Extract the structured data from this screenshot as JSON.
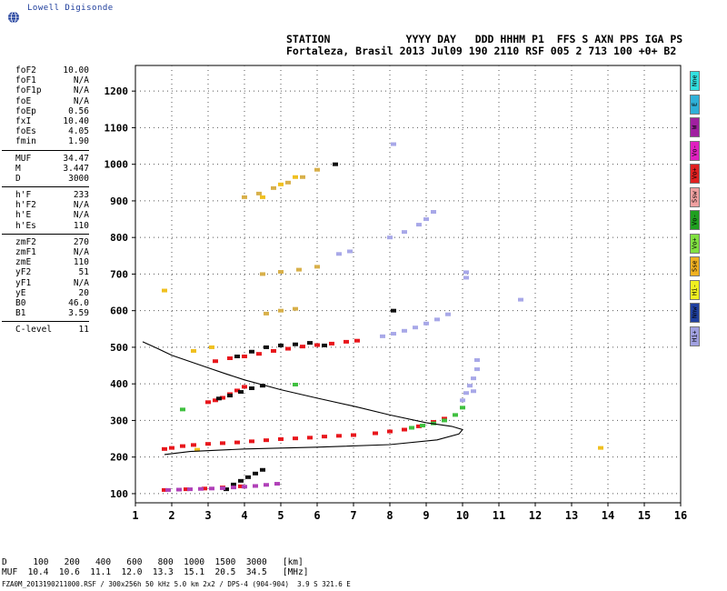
{
  "logo": {
    "text": "Lowell Digisonde"
  },
  "header": {
    "line1": "STATION            YYYY DAY   DDD HHHM P1  FFS S AXN PPS IGA PS",
    "line2": "Fortaleza, Brasil 2013 Jul09 190 2110 RSF 005 2 713 100 +0+ B2"
  },
  "params": {
    "group1": [
      {
        "label": "foF2",
        "value": "10.00"
      },
      {
        "label": "foF1",
        "value": "N/A"
      },
      {
        "label": "foF1p",
        "value": "N/A"
      },
      {
        "label": "foE",
        "value": "N/A"
      },
      {
        "label": "foEp",
        "value": "0.56"
      },
      {
        "label": "fxI",
        "value": "10.40"
      },
      {
        "label": "foEs",
        "value": "4.05"
      },
      {
        "label": "fmin",
        "value": "1.90"
      }
    ],
    "group2": [
      {
        "label": "MUF",
        "value": "34.47"
      },
      {
        "label": "M",
        "value": "3.447"
      },
      {
        "label": "D",
        "value": "3000"
      }
    ],
    "group3": [
      {
        "label": "h'F",
        "value": "233"
      },
      {
        "label": "h'F2",
        "value": "N/A"
      },
      {
        "label": "h'E",
        "value": "N/A"
      },
      {
        "label": "h'Es",
        "value": "110"
      }
    ],
    "group4": [
      {
        "label": "zmF2",
        "value": "270"
      },
      {
        "label": "zmF1",
        "value": "N/A"
      },
      {
        "label": "zmE",
        "value": "110"
      },
      {
        "label": "yF2",
        "value": "51"
      },
      {
        "label": "yF1",
        "value": "N/A"
      },
      {
        "label": "yE",
        "value": "20"
      },
      {
        "label": "B0",
        "value": "46.0"
      },
      {
        "label": "B1",
        "value": "3.59"
      }
    ],
    "group5": [
      {
        "label": "C-level",
        "value": "11"
      }
    ]
  },
  "legend": [
    {
      "label": "Nne",
      "color": "#33e0e0"
    },
    {
      "label": "E",
      "color": "#2fb0d8"
    },
    {
      "label": "W",
      "color": "#a020a0"
    },
    {
      "label": "Vo-",
      "color": "#e020c0"
    },
    {
      "label": "Vo+",
      "color": "#e02020"
    },
    {
      "label": "Ssw",
      "color": "#f0a0a0"
    },
    {
      "label": "Vo-",
      "color": "#20a020"
    },
    {
      "label": "Vo+",
      "color": "#80e040"
    },
    {
      "label": "Sse",
      "color": "#f0b020"
    },
    {
      "label": "Hi-",
      "color": "#f0f020"
    },
    {
      "label": "Nnw",
      "color": "#2040a0"
    },
    {
      "label": "Hi+",
      "color": "#a0a0e0"
    }
  ],
  "muf_table": {
    "d_line": "D     100   200   400   600   800  1000  1500  3000   [km]",
    "muf_line": "MUF  10.4  10.6  11.1  12.0  13.3  15.1  20.5  34.5   [MHz]"
  },
  "footer": "FZA0M_2013190211000.RSF / 300x256h 50 kHz 5.0 km 2x2 / DPS-4 (904-904)  3.9 S 321.6 E",
  "chart_data": {
    "type": "scatter",
    "xlim": [
      1,
      16
    ],
    "ylim": [
      75,
      1270
    ],
    "x_ticks": [
      1,
      2,
      3,
      4,
      5,
      6,
      7,
      8,
      9,
      10,
      11,
      12,
      13,
      14,
      15,
      16
    ],
    "y_ticks": [
      100,
      200,
      300,
      400,
      500,
      600,
      700,
      800,
      900,
      1000,
      1100,
      1200
    ],
    "grid": true,
    "series": [
      {
        "color": "#e8161c",
        "points": [
          [
            1.8,
            222
          ],
          [
            2.0,
            225
          ],
          [
            2.3,
            230
          ],
          [
            2.6,
            233
          ],
          [
            3.0,
            236
          ],
          [
            3.4,
            238
          ],
          [
            3.8,
            240
          ],
          [
            4.2,
            243
          ],
          [
            4.6,
            246
          ],
          [
            5.0,
            249
          ],
          [
            5.4,
            251
          ],
          [
            5.8,
            253
          ],
          [
            6.2,
            256
          ],
          [
            6.6,
            258
          ],
          [
            7.0,
            260
          ],
          [
            7.6,
            265
          ],
          [
            8.0,
            270
          ],
          [
            8.4,
            275
          ],
          [
            8.8,
            284
          ],
          [
            9.2,
            296
          ],
          [
            9.5,
            305
          ],
          [
            3.0,
            350
          ],
          [
            3.2,
            355
          ],
          [
            3.4,
            362
          ],
          [
            3.6,
            372
          ],
          [
            3.8,
            382
          ],
          [
            4.0,
            392
          ],
          [
            3.2,
            462
          ],
          [
            3.6,
            470
          ],
          [
            4.0,
            475
          ],
          [
            4.4,
            482
          ],
          [
            4.8,
            490
          ],
          [
            5.2,
            496
          ],
          [
            5.6,
            502
          ],
          [
            6.0,
            506
          ],
          [
            6.4,
            510
          ],
          [
            6.8,
            515
          ],
          [
            7.1,
            518
          ],
          [
            1.8,
            110
          ],
          [
            2.4,
            112
          ],
          [
            2.9,
            114
          ],
          [
            3.4,
            117
          ],
          [
            3.9,
            120
          ]
        ]
      },
      {
        "color": "#101010",
        "points": [
          [
            3.5,
            112
          ],
          [
            3.7,
            125
          ],
          [
            3.9,
            135
          ],
          [
            4.1,
            145
          ],
          [
            4.3,
            155
          ],
          [
            4.5,
            165
          ],
          [
            3.3,
            360
          ],
          [
            3.6,
            368
          ],
          [
            3.9,
            378
          ],
          [
            4.2,
            388
          ],
          [
            4.5,
            395
          ],
          [
            3.8,
            475
          ],
          [
            4.2,
            488
          ],
          [
            4.6,
            500
          ],
          [
            5.0,
            505
          ],
          [
            5.4,
            508
          ],
          [
            5.8,
            512
          ],
          [
            6.2,
            505
          ],
          [
            6.5,
            1000
          ],
          [
            8.1,
            600
          ]
        ]
      },
      {
        "color": "#b040b8",
        "points": [
          [
            1.9,
            110
          ],
          [
            2.2,
            111
          ],
          [
            2.5,
            112
          ],
          [
            2.8,
            113
          ],
          [
            3.1,
            114
          ],
          [
            3.4,
            115
          ],
          [
            3.7,
            117
          ],
          [
            4.0,
            119
          ],
          [
            4.3,
            121
          ],
          [
            4.6,
            124
          ],
          [
            4.9,
            127
          ]
        ]
      },
      {
        "color": "#a8a8e8",
        "points": [
          [
            7.8,
            530
          ],
          [
            8.1,
            537
          ],
          [
            8.4,
            545
          ],
          [
            8.7,
            554
          ],
          [
            9.0,
            565
          ],
          [
            9.3,
            576
          ],
          [
            9.6,
            590
          ],
          [
            8.0,
            800
          ],
          [
            8.4,
            815
          ],
          [
            8.8,
            835
          ],
          [
            9.0,
            850
          ],
          [
            9.2,
            870
          ],
          [
            10.0,
            355
          ],
          [
            10.1,
            375
          ],
          [
            10.2,
            395
          ],
          [
            10.3,
            415
          ],
          [
            10.4,
            440
          ],
          [
            10.4,
            465
          ],
          [
            10.1,
            690
          ],
          [
            10.1,
            705
          ],
          [
            6.6,
            755
          ],
          [
            6.9,
            762
          ],
          [
            8.1,
            1055
          ],
          [
            11.6,
            630
          ],
          [
            10.3,
            380
          ]
        ]
      },
      {
        "color": "#40c040",
        "points": [
          [
            8.6,
            280
          ],
          [
            8.9,
            286
          ],
          [
            9.2,
            292
          ],
          [
            9.5,
            300
          ],
          [
            9.8,
            315
          ],
          [
            10.0,
            335
          ],
          [
            2.3,
            330
          ],
          [
            5.4,
            398
          ]
        ]
      },
      {
        "color": "#f0c020",
        "points": [
          [
            2.6,
            490
          ],
          [
            3.1,
            500
          ],
          [
            4.5,
            910
          ],
          [
            5.0,
            945
          ],
          [
            5.4,
            965
          ],
          [
            1.8,
            655
          ],
          [
            13.8,
            225
          ],
          [
            2.7,
            220
          ]
        ]
      },
      {
        "color": "#d8b04a",
        "points": [
          [
            4.0,
            910
          ],
          [
            4.4,
            920
          ],
          [
            4.8,
            935
          ],
          [
            5.2,
            950
          ],
          [
            5.6,
            965
          ],
          [
            6.0,
            985
          ],
          [
            4.5,
            700
          ],
          [
            5.0,
            706
          ],
          [
            5.5,
            712
          ],
          [
            6.0,
            720
          ],
          [
            4.6,
            592
          ],
          [
            5.0,
            600
          ],
          [
            5.4,
            605
          ]
        ]
      }
    ],
    "curves": [
      {
        "type": "profile-trace",
        "points": [
          [
            1.2,
            515
          ],
          [
            1.6,
            497
          ],
          [
            2.0,
            478
          ],
          [
            2.5,
            461
          ],
          [
            3.0,
            444
          ],
          [
            3.5,
            427
          ],
          [
            4.0,
            411
          ],
          [
            5.0,
            384
          ],
          [
            6.0,
            361
          ],
          [
            7.0,
            339
          ],
          [
            8.0,
            315
          ],
          [
            9.0,
            294
          ],
          [
            9.7,
            284
          ],
          [
            10.0,
            275
          ],
          [
            9.9,
            263
          ],
          [
            9.3,
            247
          ],
          [
            8.0,
            234
          ],
          [
            6.0,
            227
          ],
          [
            4.0,
            222
          ],
          [
            2.5,
            215
          ],
          [
            1.8,
            207
          ]
        ]
      }
    ]
  }
}
